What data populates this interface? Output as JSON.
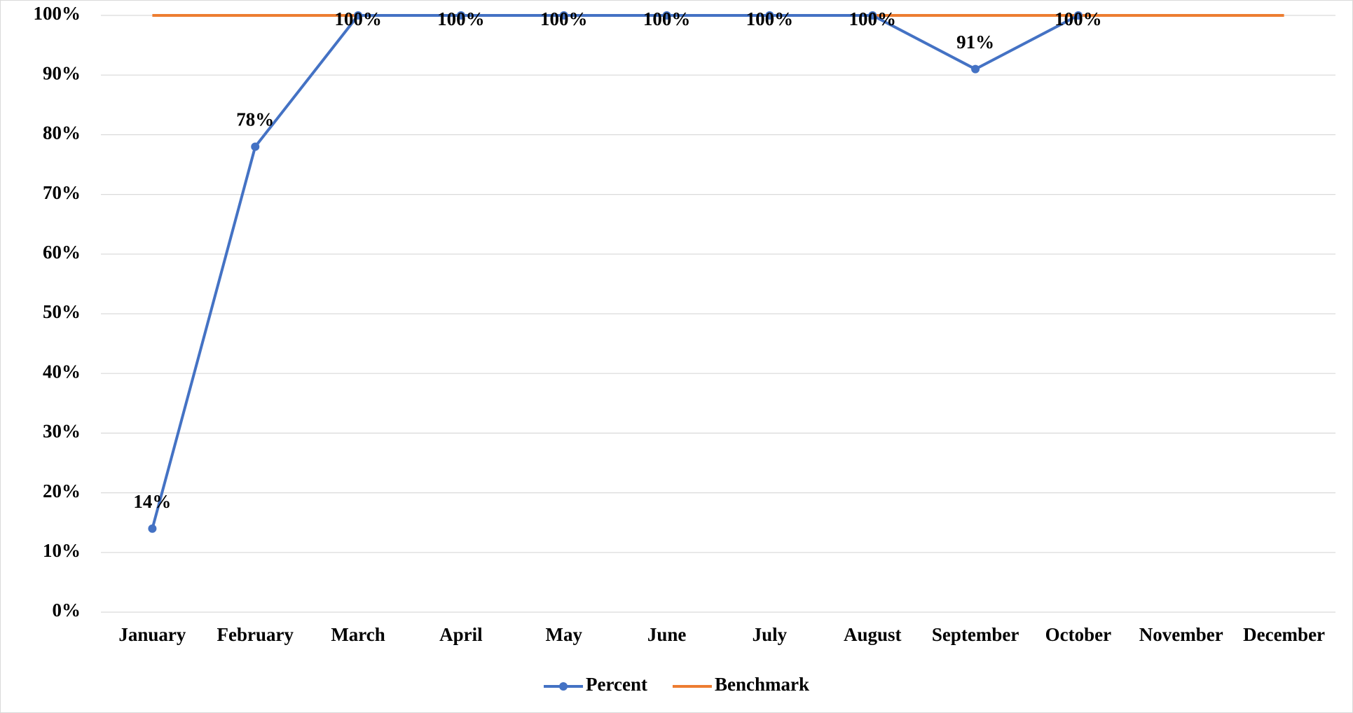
{
  "chart_data": {
    "type": "line",
    "categories": [
      "January",
      "February",
      "March",
      "April",
      "May",
      "June",
      "July",
      "August",
      "September",
      "October",
      "November",
      "December"
    ],
    "series": [
      {
        "name": "Percent",
        "color": "#4472c4",
        "marker": true,
        "values": [
          14,
          78,
          100,
          100,
          100,
          100,
          100,
          100,
          91,
          100,
          null,
          null
        ],
        "value_labels": [
          "14%",
          "78%",
          "100%",
          "100%",
          "100%",
          "100%",
          "100%",
          "100%",
          "91%",
          "100%",
          null,
          null
        ]
      },
      {
        "name": "Benchmark",
        "color": "#ed7d31",
        "marker": false,
        "values": [
          100,
          100,
          100,
          100,
          100,
          100,
          100,
          100,
          100,
          100,
          100,
          100
        ]
      }
    ],
    "ylim": [
      0,
      100
    ],
    "yticks": [
      {
        "value": 0,
        "label": "0%"
      },
      {
        "value": 10,
        "label": "10%"
      },
      {
        "value": 20,
        "label": "20%"
      },
      {
        "value": 30,
        "label": "30%"
      },
      {
        "value": 40,
        "label": "40%"
      },
      {
        "value": 50,
        "label": "50%"
      },
      {
        "value": 60,
        "label": "60%"
      },
      {
        "value": 70,
        "label": "70%"
      },
      {
        "value": 80,
        "label": "80%"
      },
      {
        "value": 90,
        "label": "90%"
      },
      {
        "value": 100,
        "label": "100%"
      }
    ],
    "grid": true,
    "legend": "bottom"
  }
}
